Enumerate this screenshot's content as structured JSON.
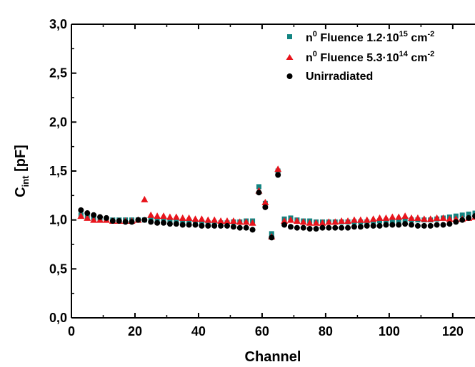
{
  "chart_data": {
    "type": "scatter",
    "xlabel": "Channel",
    "ylabel_main": "C",
    "ylabel_sub": "int",
    "ylabel_unit": " [pF]",
    "xlim": [
      0,
      127
    ],
    "ylim": [
      0,
      3.0
    ],
    "xticks": [
      0,
      20,
      40,
      60,
      80,
      100,
      120
    ],
    "yticks": [
      "0,0",
      "0,5",
      "1,0",
      "1,5",
      "2,0",
      "2,5",
      "3,0"
    ],
    "legend_position": "top-right",
    "series": [
      {
        "legend_prefix": "n",
        "legend_sup1": "0",
        "legend_mid": " Fluence 1.2·10",
        "legend_sup2": "15",
        "legend_mid2": " cm",
        "legend_sup3": "-2",
        "color": "#138582",
        "marker": "square",
        "x": [
          3,
          5,
          7,
          9,
          11,
          13,
          15,
          17,
          19,
          21,
          23,
          25,
          27,
          29,
          31,
          33,
          35,
          37,
          39,
          41,
          43,
          45,
          47,
          49,
          51,
          53,
          55,
          57,
          59,
          61,
          63,
          65,
          67,
          69,
          71,
          73,
          75,
          77,
          79,
          81,
          83,
          85,
          87,
          89,
          91,
          93,
          95,
          97,
          99,
          101,
          103,
          105,
          107,
          109,
          111,
          113,
          115,
          117,
          119,
          121,
          123,
          125,
          127
        ],
        "y": [
          1.05,
          1.03,
          1.02,
          1.01,
          1.01,
          1.0,
          1.0,
          1.0,
          1.0,
          1.0,
          1.0,
          1.0,
          0.99,
          0.99,
          0.99,
          0.99,
          0.98,
          0.98,
          0.98,
          0.97,
          0.97,
          0.97,
          0.97,
          0.97,
          0.98,
          0.98,
          0.99,
          0.99,
          1.34,
          1.17,
          0.86,
          1.5,
          1.01,
          1.02,
          1.0,
          0.99,
          0.99,
          0.98,
          0.98,
          0.98,
          0.98,
          0.98,
          0.98,
          0.98,
          0.98,
          0.98,
          0.98,
          0.99,
          0.99,
          0.99,
          0.99,
          1.0,
          1.0,
          1.0,
          1.0,
          1.0,
          1.01,
          1.02,
          1.03,
          1.04,
          1.05,
          1.06,
          1.07
        ]
      },
      {
        "legend_prefix": "n",
        "legend_sup1": "0",
        "legend_mid": " Fluence 5.3·10",
        "legend_sup2": "14",
        "legend_mid2": " cm",
        "legend_sup3": "-2",
        "color": "#e8141c",
        "marker": "triangle",
        "x": [
          3,
          5,
          7,
          9,
          11,
          13,
          15,
          17,
          19,
          21,
          23,
          25,
          27,
          29,
          31,
          33,
          35,
          37,
          39,
          41,
          43,
          45,
          47,
          49,
          51,
          53,
          55,
          57,
          59,
          61,
          63,
          65,
          67,
          69,
          71,
          73,
          75,
          77,
          79,
          81,
          83,
          85,
          87,
          89,
          91,
          93,
          95,
          97,
          99,
          101,
          103,
          105,
          107,
          109,
          111,
          113,
          115,
          117,
          119,
          121,
          123,
          125,
          127
        ],
        "y": [
          1.04,
          1.02,
          1.0,
          1.0,
          1.0,
          0.99,
          0.99,
          0.99,
          0.99,
          1.0,
          1.21,
          1.05,
          1.04,
          1.04,
          1.03,
          1.03,
          1.02,
          1.02,
          1.01,
          1.01,
          1.0,
          1.0,
          0.99,
          0.99,
          0.99,
          0.98,
          0.98,
          0.97,
          1.3,
          1.18,
          0.83,
          1.52,
          0.99,
          1.0,
          0.99,
          0.98,
          0.97,
          0.97,
          0.97,
          0.98,
          0.98,
          0.99,
          0.99,
          1.0,
          1.0,
          1.0,
          1.01,
          1.02,
          1.02,
          1.03,
          1.03,
          1.04,
          1.02,
          1.02,
          1.01,
          1.01,
          1.02,
          1.02,
          1.01,
          1.01,
          1.01,
          1.02,
          1.03
        ]
      },
      {
        "legend_prefix": "Unirradiated",
        "color": "#000000",
        "marker": "circle",
        "x": [
          3,
          5,
          7,
          9,
          11,
          13,
          15,
          17,
          19,
          21,
          23,
          25,
          27,
          29,
          31,
          33,
          35,
          37,
          39,
          41,
          43,
          45,
          47,
          49,
          51,
          53,
          55,
          57,
          59,
          61,
          63,
          65,
          67,
          69,
          71,
          73,
          75,
          77,
          79,
          81,
          83,
          85,
          87,
          89,
          91,
          93,
          95,
          97,
          99,
          101,
          103,
          105,
          107,
          109,
          111,
          113,
          115,
          117,
          119,
          121,
          123,
          125,
          127
        ],
        "y": [
          1.1,
          1.07,
          1.05,
          1.03,
          1.02,
          0.99,
          0.99,
          0.98,
          0.98,
          1.0,
          1.0,
          0.98,
          0.97,
          0.97,
          0.96,
          0.96,
          0.95,
          0.95,
          0.95,
          0.94,
          0.94,
          0.94,
          0.94,
          0.94,
          0.93,
          0.92,
          0.92,
          0.9,
          1.28,
          1.13,
          0.82,
          1.46,
          0.95,
          0.93,
          0.92,
          0.92,
          0.91,
          0.91,
          0.92,
          0.92,
          0.92,
          0.92,
          0.92,
          0.93,
          0.93,
          0.94,
          0.94,
          0.94,
          0.95,
          0.95,
          0.95,
          0.96,
          0.95,
          0.94,
          0.94,
          0.94,
          0.95,
          0.95,
          0.96,
          0.98,
          1.0,
          1.02,
          1.04
        ]
      }
    ]
  }
}
